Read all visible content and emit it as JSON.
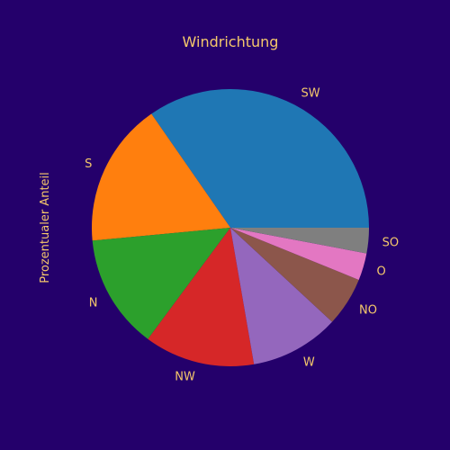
{
  "chart_data": {
    "type": "pie",
    "title": "Windrichtung",
    "ylabel": "Prozentualer Anteil",
    "start_angle_deg": 0,
    "direction": "counterclockwise",
    "colors": [
      "#1f77b4",
      "#ff7f0e",
      "#2ca02c",
      "#d62728",
      "#9467bd",
      "#8c564b",
      "#e377c2",
      "#7f7f7f"
    ],
    "slices": [
      {
        "label": "SW",
        "value": 35.0
      },
      {
        "label": "S",
        "value": 17.0
      },
      {
        "label": "N",
        "value": 13.5
      },
      {
        "label": "NW",
        "value": 13.0
      },
      {
        "label": "W",
        "value": 10.5
      },
      {
        "label": "NO",
        "value": 5.8
      },
      {
        "label": "O",
        "value": 3.2
      },
      {
        "label": "SO",
        "value": 3.0
      }
    ]
  },
  "text_color": "#f5c86b",
  "background_color": "#24006b"
}
